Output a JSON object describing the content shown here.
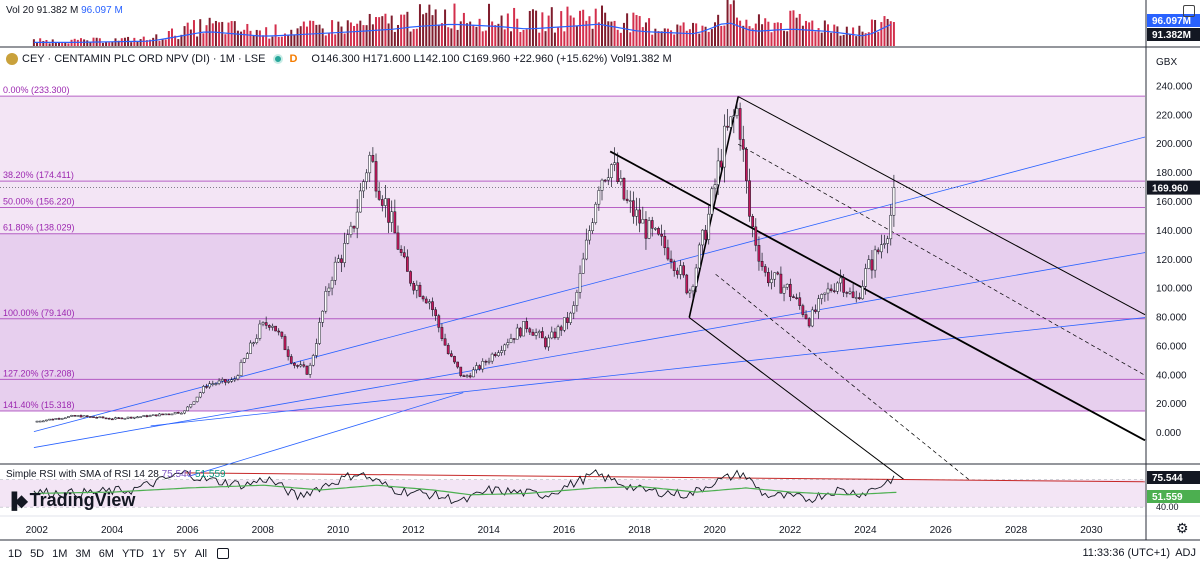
{
  "volume": {
    "label": "Vol 20",
    "value": "91.382 M",
    "ma_value": "96.097 M",
    "badge_ma": "96.097M",
    "badge_value": "91.382M"
  },
  "header": {
    "symbol": "CEY · CENTAMIN PLC ORD NPV (DI) · 1M · LSE",
    "flag": "D",
    "ohlc": "O146.300 H171.600 L142.100 C169.960 +22.960 (+15.62%) Vol91.382 M"
  },
  "currency": "GBX",
  "rsi": {
    "label": "Simple RSI with SMA of RSI 14 28",
    "rsi_value": "75.544",
    "sma_value": "51.559"
  },
  "brand": "TradingView",
  "timeframes": [
    "1D",
    "5D",
    "1M",
    "3M",
    "6M",
    "YTD",
    "1Y",
    "5Y",
    "All"
  ],
  "clock": "11:33:36 (UTC+1)",
  "adj": "ADJ",
  "colors": {
    "up": "#089981",
    "down": "#f23645",
    "fib": "#9c27b0",
    "trend": "#2962ff",
    "rsi": "#7e57c2",
    "sma": "#4caf50"
  },
  "chart_data": {
    "type": "candlestick",
    "y_unit": "GBX",
    "y_ticks": [
      0,
      20,
      40,
      60,
      80,
      100,
      120,
      140,
      160,
      180,
      200,
      220,
      240
    ],
    "ylim": [
      -20,
      250
    ],
    "x_ticks": [
      2002,
      2004,
      2006,
      2008,
      2010,
      2012,
      2014,
      2016,
      2018,
      2020,
      2022,
      2024,
      2026,
      2028,
      2030
    ],
    "xlim": [
      2001.0,
      2031.4
    ],
    "last_price": 169.96,
    "fib_levels": [
      {
        "label": "0.00% (233.300)",
        "value": 233.3
      },
      {
        "label": "38.20% (174.411)",
        "value": 174.411
      },
      {
        "label": "50.00% (156.220)",
        "value": 156.22
      },
      {
        "label": "61.80% (138.029)",
        "value": 138.029
      },
      {
        "label": "100.00% (79.140)",
        "value": 79.14
      },
      {
        "label": "127.20% (37.208)",
        "value": 37.208
      },
      {
        "label": "141.40% (15.318)",
        "value": 15.318
      }
    ],
    "price_path": [
      [
        2001.9,
        8
      ],
      [
        2003.0,
        12
      ],
      [
        2004.0,
        10
      ],
      [
        2005.0,
        12
      ],
      [
        2005.9,
        15
      ],
      [
        2006.5,
        34
      ],
      [
        2007.2,
        36
      ],
      [
        2007.9,
        72
      ],
      [
        2008.2,
        78
      ],
      [
        2008.8,
        48
      ],
      [
        2009.2,
        42
      ],
      [
        2009.8,
        110
      ],
      [
        2010.3,
        135
      ],
      [
        2010.8,
        192
      ],
      [
        2011.2,
        162
      ],
      [
        2011.8,
        110
      ],
      [
        2012.4,
        92
      ],
      [
        2012.9,
        55
      ],
      [
        2013.3,
        38
      ],
      [
        2013.8,
        47
      ],
      [
        2014.4,
        63
      ],
      [
        2015.0,
        75
      ],
      [
        2015.5,
        62
      ],
      [
        2016.2,
        82
      ],
      [
        2016.5,
        120
      ],
      [
        2016.9,
        175
      ],
      [
        2017.2,
        188
      ],
      [
        2017.6,
        160
      ],
      [
        2018.2,
        140
      ],
      [
        2018.8,
        125
      ],
      [
        2019.3,
        98
      ],
      [
        2019.8,
        148
      ],
      [
        2020.2,
        200
      ],
      [
        2020.6,
        225
      ],
      [
        2020.9,
        150
      ],
      [
        2021.3,
        110
      ],
      [
        2021.9,
        100
      ],
      [
        2022.5,
        78
      ],
      [
        2022.9,
        95
      ],
      [
        2023.3,
        108
      ],
      [
        2023.7,
        90
      ],
      [
        2024.0,
        112
      ],
      [
        2024.3,
        125
      ],
      [
        2024.6,
        145
      ],
      [
        2024.8,
        169.96
      ]
    ],
    "volume": [
      [
        2003,
        1.5
      ],
      [
        2005,
        2
      ],
      [
        2006.5,
        6
      ],
      [
        2008,
        4
      ],
      [
        2009.3,
        5
      ],
      [
        2010.5,
        6
      ],
      [
        2011.5,
        7
      ],
      [
        2012,
        8
      ],
      [
        2013,
        9
      ],
      [
        2014.3,
        8
      ],
      [
        2015,
        7
      ],
      [
        2016,
        8
      ],
      [
        2016.9,
        9
      ],
      [
        2018,
        6
      ],
      [
        2019.5,
        5
      ],
      [
        2020.3,
        10
      ],
      [
        2021,
        6
      ],
      [
        2022,
        7
      ],
      [
        2023,
        6
      ],
      [
        2024,
        4
      ],
      [
        2024.8,
        10
      ]
    ],
    "rsi_path": [
      [
        2001.9,
        52
      ],
      [
        2003,
        50
      ],
      [
        2004.5,
        55
      ],
      [
        2005.9,
        80
      ],
      [
        2006.5,
        70
      ],
      [
        2007.5,
        62
      ],
      [
        2008.1,
        72
      ],
      [
        2008.9,
        45
      ],
      [
        2009.3,
        55
      ],
      [
        2010.5,
        80
      ],
      [
        2011.5,
        55
      ],
      [
        2012.5,
        48
      ],
      [
        2013.3,
        38
      ],
      [
        2014,
        55
      ],
      [
        2015.5,
        48
      ],
      [
        2016.8,
        78
      ],
      [
        2018,
        55
      ],
      [
        2019.3,
        48
      ],
      [
        2019.9,
        65
      ],
      [
        2020.7,
        80
      ],
      [
        2021.3,
        48
      ],
      [
        2022.5,
        42
      ],
      [
        2023.2,
        55
      ],
      [
        2023.9,
        50
      ],
      [
        2024.4,
        62
      ],
      [
        2024.8,
        75.544
      ]
    ],
    "sma_path": [
      [
        2001.9,
        50
      ],
      [
        2004,
        52
      ],
      [
        2006,
        58
      ],
      [
        2008,
        62
      ],
      [
        2009.5,
        55
      ],
      [
        2011,
        62
      ],
      [
        2012.5,
        55
      ],
      [
        2013.5,
        48
      ],
      [
        2015,
        50
      ],
      [
        2016.8,
        58
      ],
      [
        2018,
        60
      ],
      [
        2019.5,
        52
      ],
      [
        2020.8,
        58
      ],
      [
        2022,
        52
      ],
      [
        2023.5,
        48
      ],
      [
        2024.8,
        51.559
      ]
    ]
  }
}
